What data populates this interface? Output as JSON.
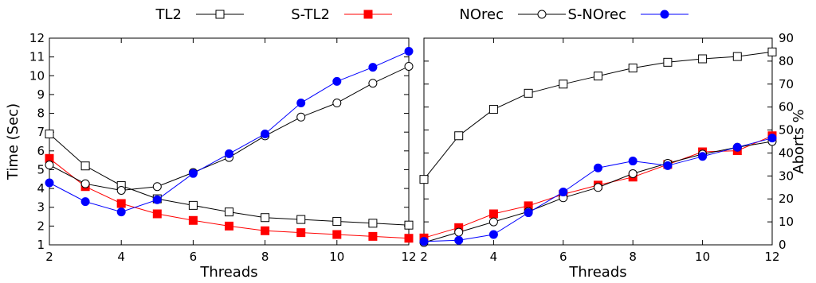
{
  "legend": {
    "items": [
      {
        "label": "TL2",
        "color": "#000000",
        "marker": "open-square"
      },
      {
        "label": "S-TL2",
        "color": "#ff0000",
        "marker": "filled-square"
      },
      {
        "label": "NOrec",
        "color": "#000000",
        "marker": "open-circle"
      },
      {
        "label": "S-NOrec",
        "color": "#0000ff",
        "marker": "filled-circle"
      }
    ]
  },
  "chart_data": [
    {
      "type": "line",
      "xlabel": "Threads",
      "ylabel": "Time (Sec)",
      "xlim": [
        2,
        12
      ],
      "ylim": [
        1,
        12
      ],
      "xticks": [
        2,
        4,
        6,
        8,
        10,
        12
      ],
      "yticks": [
        1,
        2,
        3,
        4,
        5,
        6,
        7,
        8,
        9,
        10,
        11,
        12
      ],
      "grid": false,
      "legend": "top",
      "x": [
        2,
        3,
        4,
        5,
        6,
        7,
        8,
        9,
        10,
        11,
        12
      ],
      "series": [
        {
          "name": "TL2",
          "color": "#000000",
          "marker": "open-square",
          "values": [
            6.9,
            5.2,
            4.15,
            3.45,
            3.1,
            2.75,
            2.45,
            2.35,
            2.25,
            2.15,
            2.05
          ]
        },
        {
          "name": "S-TL2",
          "color": "#ff0000",
          "marker": "filled-square",
          "values": [
            5.6,
            4.1,
            3.2,
            2.65,
            2.3,
            2.0,
            1.75,
            1.65,
            1.55,
            1.45,
            1.35
          ]
        },
        {
          "name": "NOrec",
          "color": "#000000",
          "marker": "open-circle",
          "values": [
            5.25,
            4.25,
            3.9,
            4.1,
            4.85,
            5.65,
            6.8,
            7.8,
            8.55,
            9.6,
            10.5
          ]
        },
        {
          "name": "S-NOrec",
          "color": "#0000ff",
          "marker": "filled-circle",
          "values": [
            4.3,
            3.3,
            2.75,
            3.4,
            4.8,
            5.85,
            6.9,
            8.55,
            9.7,
            10.45,
            11.3
          ]
        }
      ]
    },
    {
      "type": "line",
      "xlabel": "Threads",
      "ylabel": "Aborts %",
      "xlim": [
        2,
        12
      ],
      "ylim": [
        0,
        90
      ],
      "xticks": [
        2,
        4,
        6,
        8,
        10,
        12
      ],
      "yticks": [
        0,
        10,
        20,
        30,
        40,
        50,
        60,
        70,
        80,
        90
      ],
      "grid": false,
      "legend": "top",
      "x": [
        2,
        3,
        4,
        5,
        6,
        7,
        8,
        9,
        10,
        11,
        12
      ],
      "series": [
        {
          "name": "TL2",
          "color": "#000000",
          "marker": "open-square",
          "values": [
            28.5,
            47.5,
            59,
            66,
            70,
            73.5,
            77,
            79.5,
            81,
            82,
            84
          ]
        },
        {
          "name": "S-TL2",
          "color": "#ff0000",
          "marker": "filled-square",
          "values": [
            3,
            7.5,
            13.5,
            17,
            22,
            26,
            29.5,
            35,
            40.5,
            41,
            47.5
          ]
        },
        {
          "name": "NOrec",
          "color": "#000000",
          "marker": "open-circle",
          "values": [
            1,
            5.5,
            10,
            14.5,
            20.5,
            25,
            31,
            35.5,
            39.5,
            42.5,
            45
          ]
        },
        {
          "name": "S-NOrec",
          "color": "#0000ff",
          "marker": "filled-circle",
          "values": [
            1.5,
            2,
            4.5,
            14,
            23,
            33.5,
            36.5,
            34.5,
            38.5,
            42.5,
            46.5
          ]
        }
      ]
    }
  ]
}
